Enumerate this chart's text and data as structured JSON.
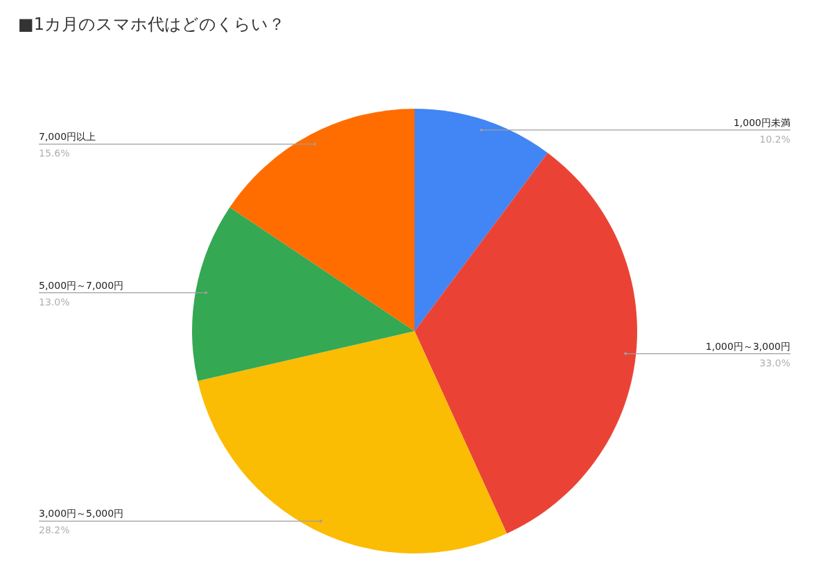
{
  "chart_data": {
    "type": "pie",
    "title": "■1カ月のスマホ代はどのくらい？",
    "categories": [
      "1,000円未満",
      "1,000円～3,000円",
      "3,000円～5,000円",
      "5,000円～7,000円",
      "7,000円以上"
    ],
    "values": [
      10.2,
      33.0,
      28.2,
      13.0,
      15.6
    ],
    "colors": [
      "#4285f4",
      "#ea4335",
      "#fbbc04",
      "#34a853",
      "#ff6d01"
    ],
    "value_labels": [
      "10.2%",
      "33.0%",
      "28.2%",
      "13.0%",
      "15.6%"
    ]
  }
}
